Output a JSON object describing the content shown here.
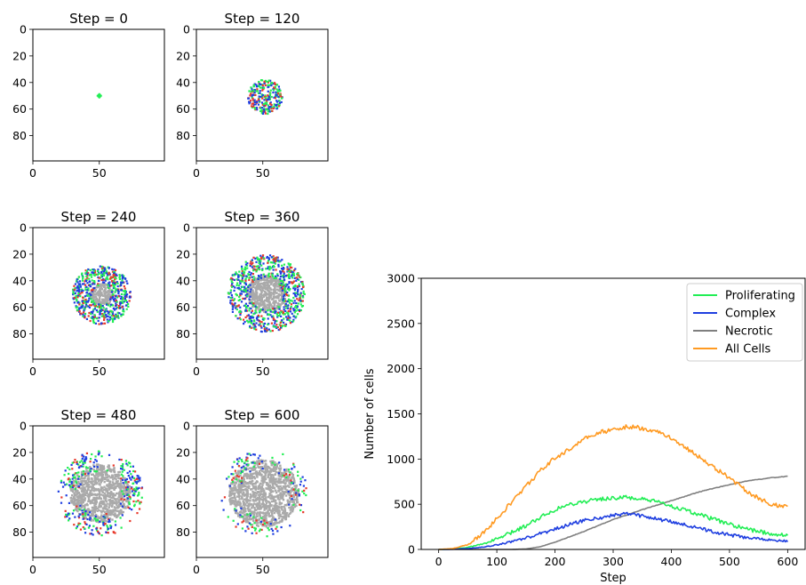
{
  "colors": {
    "proliferating": "#22ee55",
    "complex": "#1f3fe0",
    "necrotic": "#7f7f7f",
    "all_cells": "#ff9a22",
    "necrotic_core": "#aaaaaa",
    "mixed_palette": [
      "#22ee55",
      "#1f3fe0",
      "#e83a2c",
      "#22ee55",
      "#1f3fe0"
    ]
  },
  "chart_data": [
    {
      "type": "heatmap",
      "title": "Step = 0",
      "xticks": [
        "0",
        "50"
      ],
      "yticks": [
        "0",
        "20",
        "40",
        "60",
        "80"
      ],
      "xlim": [
        0,
        99
      ],
      "ylim": [
        0,
        99
      ],
      "center": [
        50,
        50
      ],
      "outer_radius": 1,
      "inner_radius": 0,
      "density": 1,
      "fragmented": false
    },
    {
      "type": "heatmap",
      "title": "Step = 120",
      "xticks": [
        "0",
        "50"
      ],
      "yticks": [
        "0",
        "20",
        "40",
        "60",
        "80"
      ],
      "xlim": [
        0,
        99
      ],
      "ylim": [
        0,
        99
      ],
      "center": [
        51,
        50
      ],
      "outer_radius": 13,
      "inner_radius": 0,
      "density": 0.95,
      "fragmented": false
    },
    {
      "type": "heatmap",
      "title": "Step = 240",
      "xticks": [
        "0",
        "50"
      ],
      "yticks": [
        "0",
        "20",
        "40",
        "60",
        "80"
      ],
      "xlim": [
        0,
        99
      ],
      "ylim": [
        0,
        99
      ],
      "center": [
        51,
        50
      ],
      "outer_radius": 22,
      "inner_radius": 9,
      "density": 0.85,
      "fragmented": false
    },
    {
      "type": "heatmap",
      "title": "Step = 360",
      "xticks": [
        "0",
        "50"
      ],
      "yticks": [
        "0",
        "20",
        "40",
        "60",
        "80"
      ],
      "xlim": [
        0,
        99
      ],
      "ylim": [
        0,
        99
      ],
      "center": [
        52,
        49
      ],
      "outer_radius": 29,
      "inner_radius": 15,
      "density": 0.65,
      "fragmented": false
    },
    {
      "type": "heatmap",
      "title": "Step = 480",
      "xticks": [
        "0",
        "50"
      ],
      "yticks": [
        "0",
        "20",
        "40",
        "60",
        "80"
      ],
      "xlim": [
        0,
        99
      ],
      "ylim": [
        0,
        99
      ],
      "center": [
        50,
        50
      ],
      "outer_radius": 32,
      "inner_radius": 20,
      "density": 0.35,
      "fragmented": true
    },
    {
      "type": "heatmap",
      "title": "Step = 600",
      "xticks": [
        "0",
        "50"
      ],
      "yticks": [
        "0",
        "20",
        "40",
        "60",
        "80"
      ],
      "xlim": [
        0,
        99
      ],
      "ylim": [
        0,
        99
      ],
      "center": [
        50,
        50
      ],
      "outer_radius": 33,
      "inner_radius": 23,
      "density": 0.18,
      "fragmented": true
    },
    {
      "type": "line",
      "xlabel": "Step",
      "ylabel": "Number of cells",
      "xlim": [
        -30,
        630
      ],
      "ylim": [
        0,
        3000
      ],
      "xticks": [
        0,
        100,
        200,
        300,
        400,
        500,
        600
      ],
      "yticks": [
        0,
        500,
        1000,
        1500,
        2000,
        2500,
        3000
      ],
      "legend": "top-right",
      "x": [
        0,
        25,
        50,
        75,
        100,
        125,
        150,
        175,
        200,
        225,
        250,
        275,
        300,
        325,
        350,
        375,
        400,
        425,
        450,
        475,
        500,
        525,
        550,
        575,
        600
      ],
      "series": [
        {
          "name": "Proliferating",
          "color": "#22ee55",
          "values": [
            0,
            5,
            22,
            60,
            115,
            185,
            265,
            360,
            440,
            500,
            530,
            555,
            570,
            575,
            555,
            525,
            480,
            430,
            380,
            330,
            280,
            230,
            200,
            170,
            160
          ]
        },
        {
          "name": "Complex",
          "color": "#1f3fe0",
          "values": [
            0,
            2,
            10,
            25,
            50,
            85,
            125,
            175,
            225,
            275,
            320,
            350,
            375,
            400,
            370,
            340,
            305,
            270,
            230,
            195,
            160,
            135,
            115,
            100,
            95
          ]
        },
        {
          "name": "Necrotic",
          "color": "#7f7f7f",
          "values": [
            0,
            0,
            0,
            0,
            0,
            0,
            5,
            30,
            80,
            140,
            200,
            265,
            330,
            385,
            440,
            490,
            540,
            590,
            640,
            680,
            715,
            750,
            775,
            795,
            810
          ]
        },
        {
          "name": "All Cells",
          "color": "#ff9a22",
          "values": [
            0,
            10,
            50,
            170,
            340,
            520,
            700,
            870,
            1010,
            1110,
            1220,
            1290,
            1330,
            1360,
            1340,
            1310,
            1230,
            1130,
            1010,
            900,
            790,
            670,
            560,
            490,
            480
          ]
        }
      ]
    }
  ]
}
